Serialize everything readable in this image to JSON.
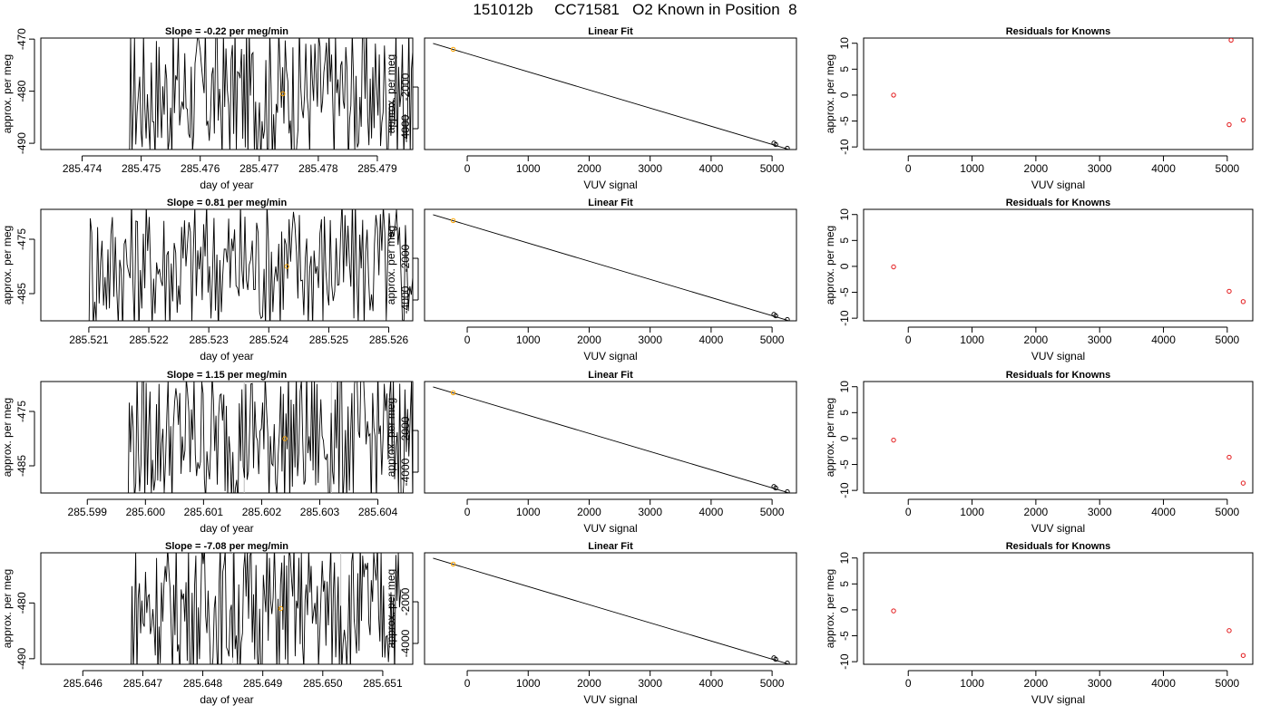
{
  "title": "151012b     CC71581   O2 Known in Position  8",
  "colors": {
    "line": "#000000",
    "known_point": "#ffa500",
    "residual": "#e31a1c",
    "reference_line": "#bebebe"
  },
  "rows": [
    {
      "timeseries": {
        "type": "line",
        "title": "Slope =  -0.22  per meg/min",
        "xlabel": "day of year",
        "ylabel": "approx. per meg",
        "xlim": [
          285.4733,
          285.4796
        ],
        "ylim": [
          -491.2,
          -469.8
        ],
        "xticks": [
          285.474,
          285.475,
          285.476,
          285.477,
          285.478,
          285.479
        ],
        "yticks": [
          -470,
          -480,
          -490
        ],
        "data_start": 285.4748,
        "data_end": 285.4796,
        "mean_point": {
          "x": 285.4774,
          "y": -480.5
        },
        "ref_lines": []
      },
      "fit": {
        "type": "scatter",
        "title": "Linear Fit",
        "xlabel": "VUV signal",
        "ylabel": "approx. per meg",
        "xlim": [
          -700,
          5400
        ],
        "ylim": [
          -5000,
          350
        ],
        "xticks": [
          0,
          1000,
          2000,
          3000,
          4000,
          5000
        ],
        "yticks": [
          -2000,
          -4000
        ],
        "line": {
          "x1": -560,
          "y1": 90,
          "x2": 5260,
          "y2": -4980
        },
        "known": {
          "x": -230,
          "y": -190
        },
        "points": [
          {
            "x": 5030,
            "y": -4690
          },
          {
            "x": 5060,
            "y": -4760
          },
          {
            "x": 5250,
            "y": -4940
          }
        ]
      },
      "residuals": {
        "type": "scatter",
        "title": "Residuals for Knowns",
        "xlabel": "VUV signal",
        "ylabel": "approx. per meg",
        "xlim": [
          -700,
          5400
        ],
        "ylim": [
          -10.5,
          11
        ],
        "xticks": [
          0,
          1000,
          2000,
          3000,
          4000,
          5000
        ],
        "yticks": [
          10,
          5,
          0,
          -5,
          -10
        ],
        "points": [
          {
            "x": -230,
            "y": 0
          },
          {
            "x": 5030,
            "y": -5.7
          },
          {
            "x": 5060,
            "y": 10.6
          },
          {
            "x": 5250,
            "y": -4.8
          }
        ]
      }
    },
    {
      "timeseries": {
        "type": "line",
        "title": "Slope =  0.81  per meg/min",
        "xlabel": "day of year",
        "ylabel": "approx. per meg",
        "xlim": [
          285.5202,
          285.5264
        ],
        "ylim": [
          -490,
          -469.5
        ],
        "xticks": [
          285.521,
          285.522,
          285.523,
          285.524,
          285.525,
          285.526
        ],
        "yticks": [
          -475,
          -485
        ],
        "data_start": 285.521,
        "data_end": 285.5264,
        "mean_point": {
          "x": 285.5243,
          "y": -480.0
        },
        "ref_lines": []
      },
      "fit": {
        "type": "scatter",
        "title": "Linear Fit",
        "xlabel": "VUV signal",
        "ylabel": "approx. per meg",
        "xlim": [
          -700,
          5400
        ],
        "ylim": [
          -5000,
          350
        ],
        "xticks": [
          0,
          1000,
          2000,
          3000,
          4000,
          5000
        ],
        "yticks": [
          -2000,
          -4000
        ],
        "line": {
          "x1": -560,
          "y1": 90,
          "x2": 5260,
          "y2": -4980
        },
        "known": {
          "x": -230,
          "y": -190
        },
        "points": [
          {
            "x": 5030,
            "y": -4690
          },
          {
            "x": 5060,
            "y": -4760
          },
          {
            "x": 5250,
            "y": -4940
          }
        ]
      },
      "residuals": {
        "type": "scatter",
        "title": "Residuals for Knowns",
        "xlabel": "VUV signal",
        "ylabel": "approx. per meg",
        "xlim": [
          -700,
          5400
        ],
        "ylim": [
          -10.5,
          11
        ],
        "xticks": [
          0,
          1000,
          2000,
          3000,
          4000,
          5000
        ],
        "yticks": [
          10,
          5,
          0,
          -5,
          -10
        ],
        "points": [
          {
            "x": -230,
            "y": -0.1
          },
          {
            "x": 5030,
            "y": -4.8
          },
          {
            "x": 5250,
            "y": -6.8
          }
        ]
      }
    },
    {
      "timeseries": {
        "type": "line",
        "title": "Slope =  1.15  per meg/min",
        "xlabel": "day of year",
        "ylabel": "approx. per meg",
        "xlim": [
          285.5982,
          285.6046
        ],
        "ylim": [
          -490,
          -469.5
        ],
        "xticks": [
          285.599,
          285.6,
          285.601,
          285.602,
          285.603,
          285.604
        ],
        "yticks": [
          -475,
          -485
        ],
        "data_start": 285.5997,
        "data_end": 285.6046,
        "mean_point": {
          "x": 285.6024,
          "y": -480.0
        },
        "ref_lines": [
          285.6017,
          285.6032
        ]
      },
      "fit": {
        "type": "scatter",
        "title": "Linear Fit",
        "xlabel": "VUV signal",
        "ylabel": "approx. per meg",
        "xlim": [
          -700,
          5400
        ],
        "ylim": [
          -5000,
          350
        ],
        "xticks": [
          0,
          1000,
          2000,
          3000,
          4000,
          5000
        ],
        "yticks": [
          -2000,
          -4000
        ],
        "line": {
          "x1": -560,
          "y1": 90,
          "x2": 5260,
          "y2": -4980
        },
        "known": {
          "x": -230,
          "y": -190
        },
        "points": [
          {
            "x": 5030,
            "y": -4690
          },
          {
            "x": 5060,
            "y": -4760
          },
          {
            "x": 5250,
            "y": -4940
          }
        ]
      },
      "residuals": {
        "type": "scatter",
        "title": "Residuals for Knowns",
        "xlabel": "VUV signal",
        "ylabel": "approx. per meg",
        "xlim": [
          -700,
          5400
        ],
        "ylim": [
          -10.5,
          11
        ],
        "xticks": [
          0,
          1000,
          2000,
          3000,
          4000,
          5000
        ],
        "yticks": [
          10,
          5,
          0,
          -5,
          -10
        ],
        "points": [
          {
            "x": -230,
            "y": -0.3
          },
          {
            "x": 5030,
            "y": -3.6
          },
          {
            "x": 5250,
            "y": -8.6
          }
        ]
      }
    },
    {
      "timeseries": {
        "type": "line",
        "title": "Slope =  -7.08  per meg/min",
        "xlabel": "day of year",
        "ylabel": "approx. per meg",
        "xlim": [
          285.6453,
          285.6515
        ],
        "ylim": [
          -491,
          -471
        ],
        "xticks": [
          285.646,
          285.647,
          285.648,
          285.649,
          285.65,
          285.651
        ],
        "yticks": [
          -480,
          -490
        ],
        "data_start": 285.6468,
        "data_end": 285.6513,
        "mean_point": {
          "x": 285.6493,
          "y": -481.0
        },
        "ref_lines": [
          285.6485,
          285.6503
        ]
      },
      "fit": {
        "type": "scatter",
        "title": "Linear Fit",
        "xlabel": "VUV signal",
        "ylabel": "approx. per meg",
        "xlim": [
          -700,
          5400
        ],
        "ylim": [
          -5000,
          350
        ],
        "xticks": [
          0,
          1000,
          2000,
          3000,
          4000,
          5000
        ],
        "yticks": [
          -2000,
          -4000
        ],
        "line": {
          "x1": -560,
          "y1": 90,
          "x2": 5260,
          "y2": -4980
        },
        "known": {
          "x": -230,
          "y": -190
        },
        "points": [
          {
            "x": 5030,
            "y": -4690
          },
          {
            "x": 5060,
            "y": -4760
          },
          {
            "x": 5250,
            "y": -4940
          }
        ]
      },
      "residuals": {
        "type": "scatter",
        "title": "Residuals for Knowns",
        "xlabel": "VUV signal",
        "ylabel": "approx. per meg",
        "xlim": [
          -700,
          5400
        ],
        "ylim": [
          -10.5,
          11
        ],
        "xticks": [
          0,
          1000,
          2000,
          3000,
          4000,
          5000
        ],
        "yticks": [
          10,
          5,
          0,
          -5,
          -10
        ],
        "points": [
          {
            "x": -230,
            "y": -0.2
          },
          {
            "x": 5030,
            "y": -4.0
          },
          {
            "x": 5250,
            "y": -8.8
          }
        ]
      }
    }
  ]
}
